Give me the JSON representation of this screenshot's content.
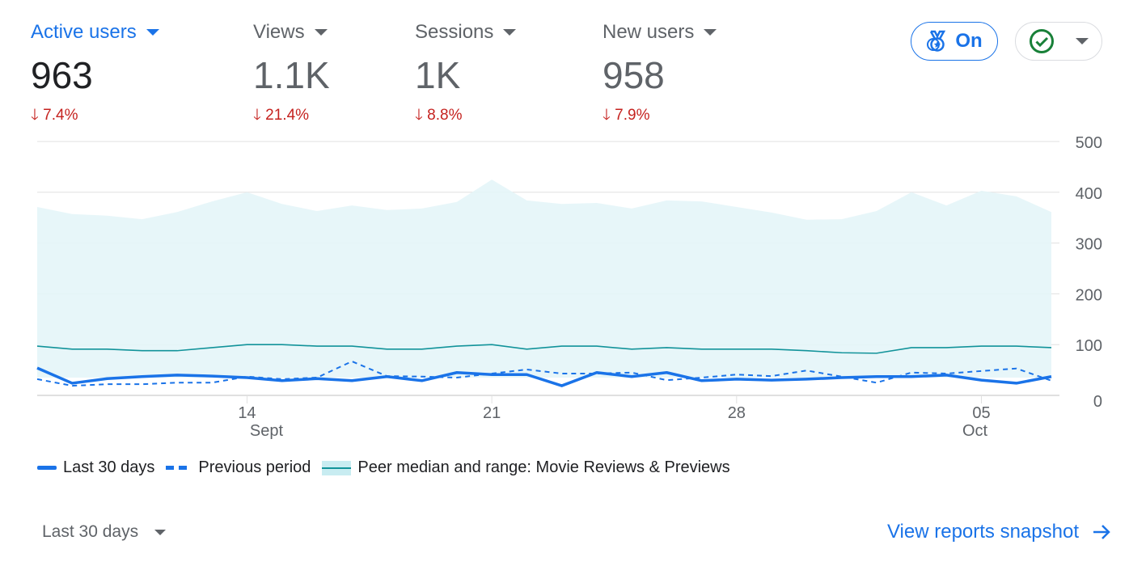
{
  "metrics": [
    {
      "label": "Active users",
      "value": "963",
      "delta": "7.4%"
    },
    {
      "label": "Views",
      "value": "1.1K",
      "delta": "21.4%"
    },
    {
      "label": "Sessions",
      "value": "1K",
      "delta": "8.8%"
    },
    {
      "label": "New users",
      "value": "958",
      "delta": "7.9%"
    }
  ],
  "toggle_label": "On",
  "footer": {
    "range": "Last 30 days",
    "link": "View reports snapshot"
  },
  "colors": {
    "primary": "#1a73e8",
    "peer": "#12939a",
    "band": "#e4f5f8",
    "down": "#c5221f"
  },
  "chart_data": {
    "type": "line",
    "ylim": [
      0,
      500
    ],
    "yticks": [
      "0",
      "100",
      "200",
      "300",
      "400",
      "500"
    ],
    "xticks": [
      {
        "index": 6,
        "day": "14",
        "month": "Sept"
      },
      {
        "index": 13,
        "day": "21",
        "month": ""
      },
      {
        "index": 20,
        "day": "28",
        "month": ""
      },
      {
        "index": 27,
        "day": "05",
        "month": "Oct"
      }
    ],
    "legend": [
      "Last 30 days",
      "Previous period",
      "Peer median and range: Movie Reviews & Previews"
    ],
    "series": [
      {
        "name": "Last 30 days",
        "values": [
          54,
          24,
          33,
          37,
          40,
          38,
          35,
          29,
          33,
          29,
          37,
          29,
          45,
          41,
          41,
          19,
          45,
          37,
          45,
          29,
          32,
          30,
          32,
          35,
          37,
          37,
          40,
          30,
          24,
          37
        ]
      },
      {
        "name": "Previous period",
        "values": [
          32,
          19,
          22,
          22,
          25,
          25,
          37,
          32,
          35,
          67,
          38,
          37,
          35,
          43,
          51,
          43,
          43,
          45,
          30,
          35,
          41,
          38,
          49,
          37,
          25,
          45,
          43,
          48,
          53,
          29
        ]
      },
      {
        "name": "Peer median",
        "values": [
          97,
          91,
          91,
          88,
          88,
          94,
          100,
          100,
          97,
          97,
          91,
          91,
          97,
          100,
          91,
          97,
          97,
          91,
          94,
          91,
          91,
          91,
          88,
          84,
          83,
          94,
          94,
          97,
          97,
          94
        ]
      },
      {
        "name": "Peer range upper",
        "values": [
          371,
          357,
          354,
          347,
          361,
          382,
          400,
          377,
          363,
          374,
          365,
          368,
          381,
          425,
          384,
          377,
          379,
          368,
          384,
          382,
          371,
          360,
          346,
          347,
          363,
          400,
          374,
          403,
          392,
          361
        ]
      },
      {
        "name": "Peer range lower",
        "values": [
          35,
          35,
          35,
          35,
          35,
          35,
          35,
          35,
          35,
          35,
          35,
          35,
          35,
          35,
          35,
          35,
          35,
          35,
          35,
          35,
          35,
          35,
          35,
          35,
          35,
          35,
          35,
          35,
          35,
          35
        ]
      }
    ]
  }
}
